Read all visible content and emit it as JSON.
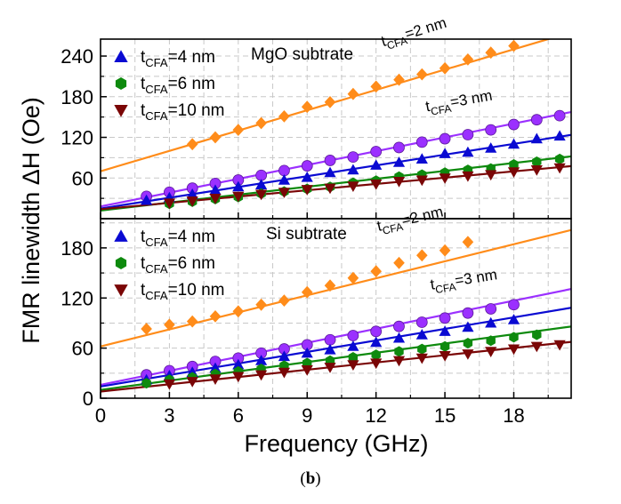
{
  "caption": {
    "open": "(",
    "letter": "b",
    "close": ")"
  },
  "y_axis_title": "FMR linewidth ΔH (Oe)",
  "x_axis_title": "Frequency (GHz)",
  "legend_items": [
    {
      "pre": "t",
      "sub": "CFA",
      "post": "=4 nm",
      "marker": "triangle-up",
      "color": "#0a0ad2"
    },
    {
      "pre": "t",
      "sub": "CFA",
      "post": "=6 nm",
      "marker": "hexagon",
      "color": "#0e8a0e"
    },
    {
      "pre": "t",
      "sub": "CFA",
      "post": "=10 nm",
      "marker": "triangle-down",
      "color": "#7a0606"
    }
  ],
  "chart_data": [
    {
      "type": "scatter",
      "panel": "top",
      "title": "MgO subtrate",
      "xlabel": "Frequency (GHz)",
      "ylabel": "FMR linewidth ΔH (Oe)",
      "xlim": [
        0,
        20.5
      ],
      "ylim": [
        0,
        265
      ],
      "xticks": [
        0,
        3,
        6,
        9,
        12,
        15,
        18
      ],
      "yticks": [
        0,
        60,
        120,
        180,
        240
      ],
      "grid": true,
      "legend_position": "top-left",
      "series": [
        {
          "name": "tCFA=2 nm",
          "label": {
            "pre": "t",
            "sub": "CFA",
            "post": "=2 nm",
            "x": 12.3,
            "y": 254
          },
          "marker": "diamond",
          "color": "#ff8c1a",
          "fit": [
            70,
            10
          ],
          "x": [
            4,
            5,
            6,
            7,
            8,
            9,
            10,
            11,
            12,
            13,
            14,
            15,
            16,
            17,
            18
          ],
          "y": [
            110,
            120,
            131,
            141,
            151,
            165,
            172,
            184,
            195,
            205,
            213,
            222,
            235,
            245,
            255
          ]
        },
        {
          "name": "tCFA=3 nm",
          "label": {
            "pre": "t",
            "sub": "CFA",
            "post": "=3 nm",
            "x": 14.2,
            "y": 158
          },
          "marker": "circle",
          "color": "#9b30ff",
          "fit": [
            18,
            6.8
          ],
          "x": [
            2,
            3,
            4,
            5,
            6,
            7,
            8,
            9,
            10,
            11,
            12,
            13,
            14,
            15,
            16,
            17,
            18,
            19,
            20
          ],
          "y": [
            33,
            39,
            45,
            52,
            57,
            64,
            71,
            78,
            86,
            91,
            99,
            105,
            113,
            118,
            124,
            131,
            139,
            146,
            152
          ]
        },
        {
          "name": "tCFA=4 nm",
          "marker": "triangle-up",
          "color": "#0a0ad2",
          "fit": [
            15,
            5.3
          ],
          "x": [
            2,
            3,
            4,
            5,
            6,
            7,
            8,
            9,
            10,
            11,
            12,
            13,
            14,
            15,
            16,
            17,
            18,
            19,
            20
          ],
          "y": [
            27,
            31,
            36,
            42,
            47,
            50,
            57,
            61,
            68,
            72,
            79,
            83,
            88,
            96,
            98,
            104,
            110,
            118,
            122
          ]
        },
        {
          "name": "tCFA=6 nm",
          "marker": "hexagon",
          "color": "#0e8a0e",
          "fit": [
            12,
            3.9
          ],
          "x": [
            3,
            4,
            5,
            6,
            7,
            8,
            9,
            10,
            11,
            12,
            13,
            14,
            15,
            16,
            17,
            18,
            19,
            20
          ],
          "y": [
            22,
            25,
            29,
            32,
            37,
            40,
            44,
            47,
            53,
            56,
            62,
            65,
            68,
            72,
            74,
            80,
            84,
            88
          ]
        },
        {
          "name": "tCFA=10 nm",
          "marker": "triangle-down",
          "color": "#7a0606",
          "fit": [
            14,
            3.1
          ],
          "x": [
            3,
            4,
            5,
            6,
            7,
            8,
            9,
            10,
            11,
            12,
            13,
            14,
            15,
            16,
            17,
            18,
            19,
            20
          ],
          "y": [
            23,
            26,
            30,
            33,
            36,
            39,
            43,
            45,
            48,
            51,
            55,
            57,
            60,
            63,
            65,
            69,
            72,
            75
          ]
        }
      ]
    },
    {
      "type": "scatter",
      "panel": "bottom",
      "title": "Si subtrate",
      "xlabel": "Frequency (GHz)",
      "ylabel": "FMR linewidth ΔH (Oe)",
      "xlim": [
        0,
        20.5
      ],
      "ylim": [
        0,
        215
      ],
      "xticks": [
        0,
        3,
        6,
        9,
        12,
        15,
        18
      ],
      "yticks": [
        0,
        60,
        120,
        180
      ],
      "grid": true,
      "legend_position": "top-left",
      "series": [
        {
          "name": "tCFA=2 nm",
          "label": {
            "pre": "t",
            "sub": "CFA",
            "post": "=2 nm",
            "x": 12.1,
            "y": 200
          },
          "marker": "diamond",
          "color": "#ff8c1a",
          "fit": [
            62,
            6.8
          ],
          "x": [
            2,
            3,
            4,
            5,
            6,
            7,
            8,
            9,
            10,
            11,
            12,
            13,
            14,
            15,
            16
          ],
          "y": [
            83,
            88,
            92,
            98,
            104,
            112,
            117,
            127,
            135,
            144,
            152,
            162,
            171,
            177,
            187
          ]
        },
        {
          "name": "tCFA=3 nm",
          "label": {
            "pre": "t",
            "sub": "CFA",
            "post": "=3 nm",
            "x": 14.4,
            "y": 130
          },
          "marker": "circle",
          "color": "#9b30ff",
          "fit": [
            16,
            5.6
          ],
          "x": [
            2,
            3,
            4,
            5,
            6,
            7,
            8,
            9,
            10,
            11,
            12,
            13,
            14,
            15,
            16,
            17,
            18
          ],
          "y": [
            28,
            33,
            38,
            44,
            48,
            54,
            59,
            64,
            70,
            75,
            80,
            86,
            91,
            96,
            102,
            107,
            112
          ]
        },
        {
          "name": "tCFA=4 nm",
          "marker": "triangle-up",
          "color": "#0a0ad2",
          "fit": [
            14,
            4.6
          ],
          "x": [
            2,
            3,
            4,
            5,
            6,
            7,
            8,
            9,
            10,
            11,
            12,
            13,
            14,
            15,
            16,
            17,
            18
          ],
          "y": [
            22,
            27,
            31,
            36,
            40,
            45,
            50,
            54,
            58,
            62,
            67,
            72,
            76,
            80,
            85,
            90,
            94
          ]
        },
        {
          "name": "tCFA=6 nm",
          "marker": "hexagon",
          "color": "#0e8a0e",
          "fit": [
            10,
            3.7
          ],
          "x": [
            2,
            3,
            4,
            5,
            6,
            7,
            8,
            9,
            10,
            11,
            12,
            13,
            14,
            15,
            16,
            17,
            18,
            19
          ],
          "y": [
            18,
            22,
            25,
            29,
            32,
            35,
            39,
            42,
            45,
            49,
            52,
            56,
            59,
            62,
            66,
            69,
            73,
            76
          ]
        },
        {
          "name": "tCFA=10 nm",
          "marker": "triangle-down",
          "color": "#7a0606",
          "fit": [
            8,
            2.9
          ],
          "x": [
            3,
            4,
            5,
            6,
            7,
            8,
            9,
            10,
            11,
            12,
            13,
            14,
            15,
            16,
            17,
            18,
            19,
            20
          ],
          "y": [
            17,
            20,
            23,
            26,
            28,
            31,
            34,
            37,
            40,
            42,
            45,
            48,
            51,
            53,
            56,
            59,
            62,
            64
          ]
        }
      ]
    }
  ]
}
